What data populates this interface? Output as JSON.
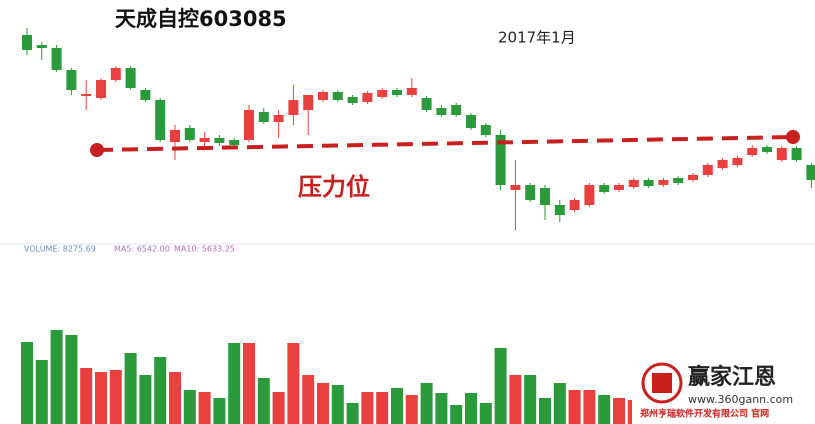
{
  "chart_data": {
    "type": "candlestick",
    "title": "天成自控603085",
    "subtitle": "2017年1月",
    "annotation": "压力位",
    "up_color": "#e8403f",
    "down_color": "#2a9a3a",
    "resistance_color": "#c8201e",
    "ylim": [
      0,
      240
    ],
    "open": [
      205,
      195,
      192,
      170,
      144,
      142,
      160,
      172,
      150,
      140,
      98,
      112,
      98,
      102,
      100,
      100,
      128,
      118,
      125,
      130,
      140,
      148,
      143,
      138,
      143,
      150,
      145,
      142,
      132,
      135,
      125,
      115,
      105,
      50,
      55,
      52,
      35,
      30,
      35,
      55,
      50,
      53,
      60,
      55,
      62,
      60,
      65,
      72,
      75,
      85,
      93,
      80,
      92,
      75
    ],
    "close": [
      190,
      192,
      170,
      150,
      146,
      160,
      172,
      152,
      140,
      100,
      110,
      100,
      102,
      97,
      95,
      130,
      118,
      125,
      140,
      145,
      148,
      140,
      137,
      147,
      150,
      145,
      152,
      130,
      125,
      125,
      112,
      105,
      55,
      55,
      40,
      35,
      25,
      40,
      55,
      48,
      55,
      60,
      54,
      60,
      57,
      65,
      75,
      80,
      82,
      92,
      88,
      92,
      80,
      60
    ],
    "high": [
      212,
      198,
      195,
      172,
      160,
      162,
      174,
      174,
      152,
      142,
      115,
      115,
      108,
      105,
      102,
      135,
      132,
      130,
      155,
      145,
      150,
      150,
      145,
      149,
      152,
      152,
      162,
      144,
      135,
      137,
      127,
      117,
      110,
      80,
      57,
      55,
      40,
      42,
      57,
      57,
      57,
      62,
      62,
      62,
      64,
      67,
      77,
      82,
      84,
      95,
      95,
      94,
      94,
      77
    ],
    "low": [
      185,
      180,
      168,
      145,
      130,
      140,
      158,
      150,
      138,
      98,
      80,
      98,
      92,
      94,
      93,
      98,
      116,
      102,
      115,
      105,
      138,
      138,
      135,
      136,
      141,
      143,
      143,
      128,
      123,
      123,
      110,
      103,
      50,
      10,
      38,
      20,
      18,
      28,
      33,
      46,
      48,
      51,
      52,
      53,
      55,
      58,
      63,
      70,
      73,
      83,
      86,
      78,
      78,
      52
    ],
    "resistance_values": [
      90,
      103
    ],
    "volume_legend": [
      "VOLUME: 8275.69",
      "MA5: 6542.00",
      "MA10: 5633.25"
    ],
    "volume_ylim": [
      0,
      124
    ],
    "volume": [
      82,
      64,
      94,
      89,
      56,
      52,
      54,
      71,
      49,
      67,
      52,
      34,
      32,
      26,
      81,
      81,
      46,
      32,
      81,
      49,
      41,
      39,
      21,
      32,
      32,
      36,
      29,
      41,
      31,
      19,
      31,
      21,
      76,
      49,
      49,
      26,
      41,
      34,
      34,
      29,
      26,
      24,
      null,
      null,
      null,
      null,
      null,
      null,
      null,
      null,
      null,
      null,
      null,
      null
    ]
  },
  "logo": {
    "name": "赢家江恩",
    "url": "www.360gann.com",
    "company": "郑州亨瑞软件开发有限公司 官网"
  }
}
